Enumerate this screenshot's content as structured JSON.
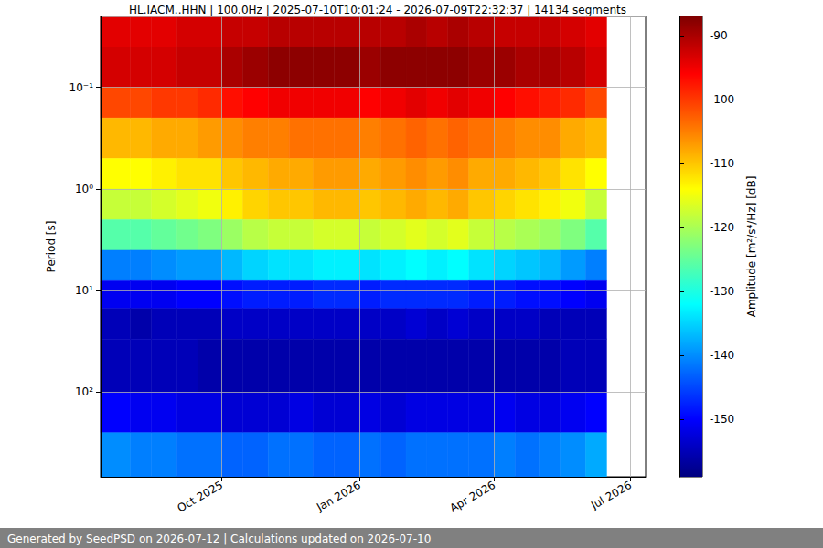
{
  "chart_data": {
    "type": "heatmap",
    "title": "HL.IACM..HHN | 100.0Hz | 2025-07-10T10:01:24 - 2026-07-09T22:32:37 | 14134 segments",
    "ylabel": "Period [s]",
    "footer": "Generated by SeedPSD on 2026-07-12 | Calculations updated on 2026-07-10",
    "log": "y",
    "grid": true,
    "xlim": [
      "2025-07-12",
      "2026-07-11"
    ],
    "xticks": [
      {
        "value": "2025-10-01",
        "label": "Oct 2025"
      },
      {
        "value": "2026-01-01",
        "label": "Jan 2026"
      },
      {
        "value": "2026-04-01",
        "label": "Apr 2026"
      },
      {
        "value": "2026-07-01",
        "label": "Jul 2026"
      }
    ],
    "ylim": [
      0.02,
      680
    ],
    "yticks": [
      {
        "value": 0.1,
        "label": "10⁻¹"
      },
      {
        "value": 1,
        "label": "10⁰"
      },
      {
        "value": 10,
        "label": "10¹"
      },
      {
        "value": 100,
        "label": "10²"
      }
    ],
    "x_edges": [
      "2025-07-12",
      "2025-08-01",
      "2025-08-15",
      "2025-09-01",
      "2025-09-15",
      "2025-10-01",
      "2025-10-15",
      "2025-11-01",
      "2025-11-15",
      "2025-12-01",
      "2025-12-15",
      "2026-01-01",
      "2026-01-15",
      "2026-02-01",
      "2026-02-15",
      "2026-03-01",
      "2026-03-15",
      "2026-04-01",
      "2026-04-15",
      "2026-05-01",
      "2026-05-15",
      "2026-06-01",
      "2026-06-15",
      "2026-07-01",
      "2026-07-11"
    ],
    "y_edges": [
      0.02,
      0.04,
      0.1,
      0.2,
      0.5,
      1,
      2,
      4,
      8,
      15,
      30,
      100,
      250,
      680
    ],
    "cells": [
      [
        -94,
        -94,
        -94,
        -93,
        -93,
        -92,
        -92,
        -91,
        -91,
        -91,
        -91,
        -91,
        -91,
        -90,
        -91,
        -90,
        -91,
        -92,
        -92,
        -92,
        -93,
        -94,
        null,
        null
      ],
      [
        -93,
        -93,
        -93,
        -92,
        -92,
        -90,
        -89,
        -88,
        -88,
        -88,
        -88,
        -89,
        -88,
        -88,
        -88,
        -88,
        -89,
        -89,
        -90,
        -90,
        -91,
        -93,
        null,
        null
      ],
      [
        -101,
        -101,
        -100,
        -100,
        -99,
        -97,
        -96,
        -95,
        -95,
        -95,
        -95,
        -96,
        -95,
        -94,
        -95,
        -94,
        -95,
        -96,
        -97,
        -98,
        -99,
        -101,
        null,
        null
      ],
      [
        -109,
        -109,
        -108,
        -108,
        -107,
        -106,
        -105,
        -105,
        -104,
        -104,
        -104,
        -105,
        -104,
        -103,
        -104,
        -103,
        -104,
        -105,
        -106,
        -106,
        -108,
        -109,
        null,
        null
      ],
      [
        -114,
        -114,
        -113,
        -112,
        -112,
        -110,
        -109,
        -108,
        -108,
        -107,
        -107,
        -108,
        -107,
        -106,
        -107,
        -106,
        -108,
        -108,
        -109,
        -110,
        -112,
        -114,
        null,
        null
      ],
      [
        -118,
        -118,
        -117,
        -116,
        -115,
        -113,
        -111,
        -110,
        -110,
        -109,
        -109,
        -110,
        -109,
        -108,
        -109,
        -108,
        -110,
        -111,
        -112,
        -113,
        -115,
        -118,
        null,
        null
      ],
      [
        -126,
        -126,
        -125,
        -124,
        -123,
        -121,
        -119,
        -118,
        -118,
        -117,
        -117,
        -118,
        -117,
        -116,
        -117,
        -116,
        -118,
        -119,
        -120,
        -121,
        -123,
        -126,
        null,
        null
      ],
      [
        -141,
        -141,
        -140,
        -139,
        -139,
        -137,
        -135,
        -134,
        -134,
        -133,
        -133,
        -134,
        -133,
        -132,
        -133,
        -132,
        -134,
        -135,
        -136,
        -137,
        -139,
        -141,
        null,
        null
      ],
      [
        -151,
        -151,
        -151,
        -150,
        -150,
        -149,
        -148,
        -148,
        -148,
        -147,
        -147,
        -148,
        -147,
        -147,
        -147,
        -147,
        -148,
        -148,
        -149,
        -149,
        -150,
        -151,
        null,
        null
      ],
      [
        -155,
        -156,
        -155,
        -155,
        -155,
        -154,
        -154,
        -154,
        -154,
        -154,
        -154,
        -154,
        -154,
        -153,
        -154,
        -153,
        -154,
        -154,
        -154,
        -155,
        -155,
        -155,
        null,
        null
      ],
      [
        -155,
        -155,
        -155,
        -155,
        -156,
        -156,
        -156,
        -156,
        -156,
        -156,
        -156,
        -156,
        -156,
        -156,
        -156,
        -156,
        -156,
        -156,
        -156,
        -156,
        -155,
        -155,
        null,
        null
      ],
      [
        -150,
        -151,
        -151,
        -152,
        -152,
        -153,
        -153,
        -153,
        -152,
        -153,
        -153,
        -152,
        -153,
        -152,
        -152,
        -152,
        -152,
        -151,
        -152,
        -152,
        -151,
        -150,
        null,
        null
      ],
      [
        -140,
        -141,
        -141,
        -142,
        -142,
        -143,
        -143,
        -142,
        -142,
        -143,
        -143,
        -142,
        -143,
        -142,
        -142,
        -142,
        -142,
        -141,
        -142,
        -141,
        -140,
        -138,
        null,
        null
      ]
    ],
    "colorbar": {
      "label": "Amplitude [m²/s⁴/Hz] [dB]",
      "range": [
        -159,
        -87
      ],
      "ticks": [
        -150,
        -140,
        -130,
        -120,
        -110,
        -100,
        -90
      ]
    }
  }
}
